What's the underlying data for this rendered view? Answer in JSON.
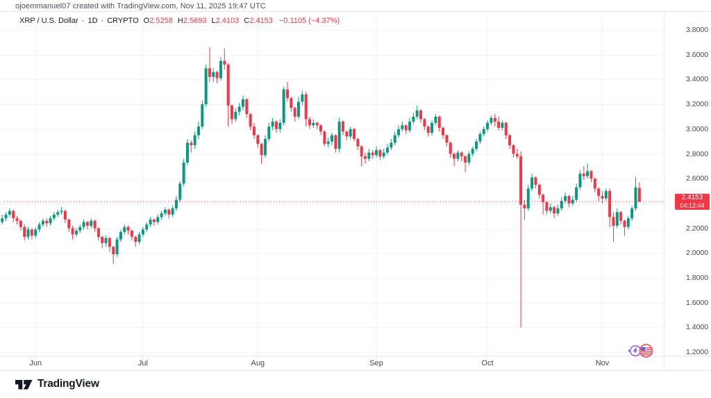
{
  "header": {
    "attribution": "ojoemmanuel07 created with TradingView.com, Nov 11, 2025 19:47 UTC"
  },
  "legend": {
    "symbol": "XRP / U.S. Dollar",
    "sep": "·",
    "interval": "1D",
    "exchange": "CRYPTO",
    "o_label": "O",
    "o": "2.5258",
    "h_label": "H",
    "h": "2.5693",
    "l_label": "L",
    "l": "2.4103",
    "c_label": "C",
    "c": "2.4153",
    "change": "−0.1105 (−4.37%)"
  },
  "price_axis": {
    "badge": {
      "price": "2.4153",
      "countdown": "04:12:44"
    }
  },
  "footer": {
    "logo_text": "TradingView"
  },
  "colors": {
    "up": "#089981",
    "down": "#f23645",
    "grid": "#f0f3fa",
    "border": "#e4e8ee",
    "axis_text": "#434651",
    "price_line": "#f23645",
    "badge_bg": "#f23645"
  },
  "chart_data": {
    "type": "candlestick",
    "symbol": "XRP / U.S. Dollar",
    "interval": "1D",
    "exchange": "CRYPTO",
    "y_axis_range": [
      1.17,
      3.87
    ],
    "grid": true,
    "y_tick_labels": [
      "3.8000",
      "3.6000",
      "3.4000",
      "3.2000",
      "3.0000",
      "2.8000",
      "2.6000",
      "2.4000",
      "2.2000",
      "2.0000",
      "1.8000",
      "1.6000",
      "1.4000",
      "1.2000"
    ],
    "x_tick_labels": [
      "Jun",
      "Jul",
      "Aug",
      "Sep",
      "Oct",
      "Nov"
    ],
    "x_tick_indices": [
      9,
      38,
      69,
      101,
      131,
      162
    ],
    "last_price": 2.4153,
    "last_candle": {
      "open": 2.5258,
      "high": 2.5693,
      "low": 2.4103,
      "close": 2.4153,
      "change": -0.1105,
      "change_pct": -4.37
    },
    "candles": [
      [
        2.25,
        2.31,
        2.23,
        2.28
      ],
      [
        2.28,
        2.33,
        2.26,
        2.31
      ],
      [
        2.31,
        2.36,
        2.29,
        2.34
      ],
      [
        2.34,
        2.35,
        2.25,
        2.28
      ],
      [
        2.28,
        2.3,
        2.23,
        2.26
      ],
      [
        2.26,
        2.27,
        2.18,
        2.21
      ],
      [
        2.21,
        2.23,
        2.1,
        2.13
      ],
      [
        2.13,
        2.21,
        2.11,
        2.19
      ],
      [
        2.19,
        2.2,
        2.11,
        2.14
      ],
      [
        2.14,
        2.21,
        2.12,
        2.19
      ],
      [
        2.19,
        2.25,
        2.17,
        2.23
      ],
      [
        2.23,
        2.28,
        2.21,
        2.26
      ],
      [
        2.26,
        2.28,
        2.21,
        2.24
      ],
      [
        2.24,
        2.3,
        2.22,
        2.28
      ],
      [
        2.28,
        2.33,
        2.26,
        2.31
      ],
      [
        2.31,
        2.35,
        2.29,
        2.33
      ],
      [
        2.33,
        2.37,
        2.31,
        2.34
      ],
      [
        2.34,
        2.35,
        2.24,
        2.27
      ],
      [
        2.27,
        2.28,
        2.17,
        2.2
      ],
      [
        2.2,
        2.22,
        2.11,
        2.15
      ],
      [
        2.15,
        2.2,
        2.13,
        2.18
      ],
      [
        2.18,
        2.23,
        2.16,
        2.21
      ],
      [
        2.21,
        2.27,
        2.19,
        2.25
      ],
      [
        2.25,
        2.26,
        2.19,
        2.22
      ],
      [
        2.22,
        2.28,
        2.2,
        2.26
      ],
      [
        2.26,
        2.27,
        2.17,
        2.2
      ],
      [
        2.2,
        2.21,
        2.1,
        2.13
      ],
      [
        2.13,
        2.14,
        2.04,
        2.08
      ],
      [
        2.08,
        2.14,
        2.05,
        2.12
      ],
      [
        2.12,
        2.13,
        2.01,
        2.05
      ],
      [
        2.05,
        2.06,
        1.91,
        1.99
      ],
      [
        1.99,
        2.13,
        1.97,
        2.11
      ],
      [
        2.11,
        2.19,
        2.09,
        2.17
      ],
      [
        2.17,
        2.23,
        2.15,
        2.21
      ],
      [
        2.21,
        2.22,
        2.15,
        2.18
      ],
      [
        2.18,
        2.19,
        2.1,
        2.13
      ],
      [
        2.13,
        2.14,
        2.05,
        2.09
      ],
      [
        2.09,
        2.17,
        2.07,
        2.15
      ],
      [
        2.15,
        2.21,
        2.13,
        2.19
      ],
      [
        2.19,
        2.25,
        2.17,
        2.23
      ],
      [
        2.23,
        2.29,
        2.21,
        2.27
      ],
      [
        2.27,
        2.28,
        2.22,
        2.25
      ],
      [
        2.25,
        2.31,
        2.23,
        2.29
      ],
      [
        2.29,
        2.34,
        2.27,
        2.32
      ],
      [
        2.32,
        2.37,
        2.3,
        2.35
      ],
      [
        2.35,
        2.36,
        2.28,
        2.31
      ],
      [
        2.31,
        2.38,
        2.29,
        2.36
      ],
      [
        2.36,
        2.46,
        2.34,
        2.43
      ],
      [
        2.43,
        2.58,
        2.41,
        2.56
      ],
      [
        2.56,
        2.76,
        2.54,
        2.73
      ],
      [
        2.73,
        2.92,
        2.71,
        2.89
      ],
      [
        2.89,
        2.91,
        2.81,
        2.87
      ],
      [
        2.87,
        2.98,
        2.84,
        2.95
      ],
      [
        2.95,
        3.06,
        2.92,
        3.02
      ],
      [
        3.02,
        3.23,
        3.0,
        3.2
      ],
      [
        3.2,
        3.52,
        3.18,
        3.49
      ],
      [
        3.49,
        3.66,
        3.38,
        3.42
      ],
      [
        3.42,
        3.49,
        3.38,
        3.46
      ],
      [
        3.46,
        3.47,
        3.37,
        3.41
      ],
      [
        3.41,
        3.58,
        3.39,
        3.55
      ],
      [
        3.55,
        3.65,
        3.48,
        3.52
      ],
      [
        3.52,
        3.53,
        3.02,
        3.19
      ],
      [
        3.19,
        3.2,
        3.04,
        3.08
      ],
      [
        3.08,
        3.17,
        3.06,
        3.14
      ],
      [
        3.14,
        3.21,
        3.11,
        3.18
      ],
      [
        3.18,
        3.27,
        3.15,
        3.24
      ],
      [
        3.24,
        3.25,
        3.09,
        3.12
      ],
      [
        3.12,
        3.13,
        2.99,
        3.02
      ],
      [
        3.02,
        3.05,
        2.92,
        2.95
      ],
      [
        2.95,
        2.96,
        2.85,
        2.88
      ],
      [
        2.88,
        2.89,
        2.72,
        2.79
      ],
      [
        2.79,
        2.95,
        2.77,
        2.92
      ],
      [
        2.92,
        3.05,
        2.9,
        3.02
      ],
      [
        3.02,
        3.09,
        2.99,
        3.06
      ],
      [
        3.06,
        3.07,
        2.97,
        3.0
      ],
      [
        3.0,
        3.08,
        2.97,
        3.05
      ],
      [
        3.05,
        3.34,
        3.03,
        3.32
      ],
      [
        3.32,
        3.38,
        3.22,
        3.25
      ],
      [
        3.25,
        3.26,
        3.14,
        3.17
      ],
      [
        3.17,
        3.18,
        3.06,
        3.1
      ],
      [
        3.1,
        3.26,
        3.08,
        3.22
      ],
      [
        3.22,
        3.31,
        3.19,
        3.28
      ],
      [
        3.28,
        3.3,
        3.02,
        3.08
      ],
      [
        3.08,
        3.1,
        3.0,
        3.03
      ],
      [
        3.03,
        3.08,
        3.01,
        3.05
      ],
      [
        3.05,
        3.06,
        3.0,
        3.03
      ],
      [
        3.03,
        3.04,
        2.95,
        2.98
      ],
      [
        2.98,
        2.99,
        2.86,
        2.88
      ],
      [
        2.88,
        2.93,
        2.85,
        2.9
      ],
      [
        2.9,
        2.97,
        2.87,
        2.95
      ],
      [
        2.95,
        2.96,
        2.81,
        2.84
      ],
      [
        2.84,
        3.09,
        2.81,
        3.06
      ],
      [
        3.06,
        3.07,
        2.95,
        2.98
      ],
      [
        2.98,
        2.99,
        2.91,
        2.94
      ],
      [
        2.94,
        3.02,
        2.92,
        3.0
      ],
      [
        3.0,
        3.01,
        2.9,
        2.92
      ],
      [
        2.92,
        2.93,
        2.83,
        2.86
      ],
      [
        2.86,
        2.87,
        2.7,
        2.78
      ],
      [
        2.78,
        2.81,
        2.72,
        2.76
      ],
      [
        2.76,
        2.84,
        2.74,
        2.81
      ],
      [
        2.81,
        2.83,
        2.76,
        2.79
      ],
      [
        2.79,
        2.86,
        2.77,
        2.83
      ],
      [
        2.83,
        2.84,
        2.75,
        2.78
      ],
      [
        2.78,
        2.84,
        2.76,
        2.81
      ],
      [
        2.81,
        2.88,
        2.79,
        2.85
      ],
      [
        2.85,
        2.92,
        2.83,
        2.89
      ],
      [
        2.89,
        2.98,
        2.87,
        2.95
      ],
      [
        2.95,
        3.03,
        2.93,
        3.0
      ],
      [
        3.0,
        3.06,
        2.98,
        3.03
      ],
      [
        3.03,
        3.04,
        2.96,
        2.99
      ],
      [
        2.99,
        3.09,
        2.97,
        3.06
      ],
      [
        3.06,
        3.13,
        3.04,
        3.1
      ],
      [
        3.1,
        3.19,
        3.08,
        3.15
      ],
      [
        3.15,
        3.16,
        3.05,
        3.08
      ],
      [
        3.08,
        3.09,
        2.99,
        3.02
      ],
      [
        3.02,
        3.03,
        2.94,
        2.97
      ],
      [
        2.97,
        3.07,
        2.95,
        3.05
      ],
      [
        3.05,
        3.12,
        3.03,
        3.1
      ],
      [
        3.1,
        3.11,
        2.98,
        3.01
      ],
      [
        3.01,
        3.02,
        2.92,
        2.95
      ],
      [
        2.95,
        2.96,
        2.86,
        2.89
      ],
      [
        2.89,
        2.9,
        2.77,
        2.8
      ],
      [
        2.8,
        2.81,
        2.7,
        2.76
      ],
      [
        2.76,
        2.83,
        2.74,
        2.81
      ],
      [
        2.81,
        2.82,
        2.74,
        2.78
      ],
      [
        2.78,
        2.79,
        2.65,
        2.73
      ],
      [
        2.73,
        2.82,
        2.71,
        2.8
      ],
      [
        2.8,
        2.86,
        2.78,
        2.84
      ],
      [
        2.84,
        2.92,
        2.82,
        2.9
      ],
      [
        2.9,
        2.98,
        2.88,
        2.96
      ],
      [
        2.96,
        3.02,
        2.94,
        3.0
      ],
      [
        3.0,
        3.07,
        2.98,
        3.05
      ],
      [
        3.05,
        3.11,
        3.03,
        3.09
      ],
      [
        3.09,
        3.12,
        3.02,
        3.06
      ],
      [
        3.06,
        3.1,
        2.99,
        3.01
      ],
      [
        3.01,
        3.07,
        2.99,
        3.05
      ],
      [
        3.05,
        3.06,
        2.92,
        2.95
      ],
      [
        2.95,
        2.96,
        2.84,
        2.87
      ],
      [
        2.87,
        2.88,
        2.77,
        2.8
      ],
      [
        2.8,
        2.84,
        2.76,
        2.78
      ],
      [
        2.78,
        2.82,
        1.4,
        2.39
      ],
      [
        2.39,
        2.43,
        2.27,
        2.36
      ],
      [
        2.36,
        2.55,
        2.34,
        2.52
      ],
      [
        2.52,
        2.64,
        2.5,
        2.61
      ],
      [
        2.61,
        2.62,
        2.52,
        2.55
      ],
      [
        2.55,
        2.56,
        2.44,
        2.47
      ],
      [
        2.47,
        2.48,
        2.31,
        2.41
      ],
      [
        2.41,
        2.42,
        2.31,
        2.34
      ],
      [
        2.34,
        2.4,
        2.32,
        2.37
      ],
      [
        2.37,
        2.38,
        2.28,
        2.32
      ],
      [
        2.32,
        2.39,
        2.3,
        2.36
      ],
      [
        2.36,
        2.45,
        2.34,
        2.42
      ],
      [
        2.42,
        2.49,
        2.4,
        2.46
      ],
      [
        2.46,
        2.47,
        2.37,
        2.4
      ],
      [
        2.4,
        2.46,
        2.38,
        2.43
      ],
      [
        2.43,
        2.56,
        2.41,
        2.53
      ],
      [
        2.53,
        2.67,
        2.51,
        2.64
      ],
      [
        2.64,
        2.7,
        2.59,
        2.62
      ],
      [
        2.62,
        2.72,
        2.6,
        2.66
      ],
      [
        2.66,
        2.67,
        2.57,
        2.6
      ],
      [
        2.6,
        2.61,
        2.49,
        2.52
      ],
      [
        2.52,
        2.53,
        2.42,
        2.46
      ],
      [
        2.46,
        2.5,
        2.4,
        2.44
      ],
      [
        2.44,
        2.52,
        2.42,
        2.5
      ],
      [
        2.5,
        2.52,
        2.21,
        2.29
      ],
      [
        2.29,
        2.33,
        2.09,
        2.22
      ],
      [
        2.22,
        2.36,
        2.2,
        2.33
      ],
      [
        2.33,
        2.34,
        2.23,
        2.26
      ],
      [
        2.26,
        2.27,
        2.14,
        2.21
      ],
      [
        2.21,
        2.3,
        2.19,
        2.28
      ],
      [
        2.28,
        2.38,
        2.26,
        2.36
      ],
      [
        2.36,
        2.61,
        2.34,
        2.53
      ],
      [
        2.5258,
        2.5693,
        2.4103,
        2.4153
      ]
    ]
  }
}
